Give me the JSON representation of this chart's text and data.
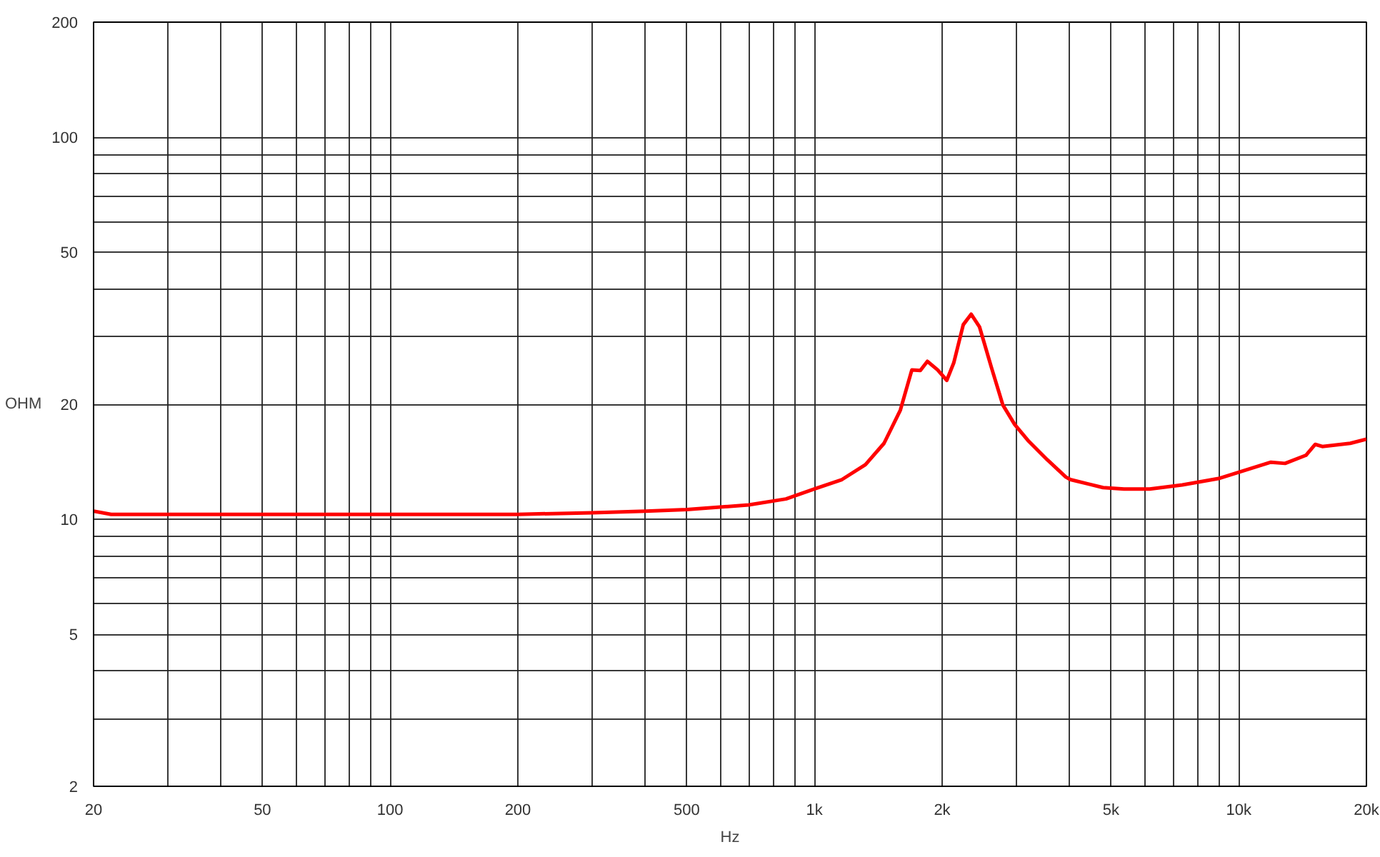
{
  "chart_data": {
    "type": "line",
    "xlabel": "Hz",
    "ylabel": "OHM",
    "log": "xy",
    "grid": true,
    "marker": "none",
    "line_style": "solid",
    "xlim": [
      20,
      20000
    ],
    "ylim": [
      2,
      200
    ],
    "xticks": [
      20,
      {
        "value": 30,
        "label": null
      },
      {
        "value": 40,
        "label": null
      },
      50,
      {
        "value": 60,
        "label": null
      },
      {
        "value": 70,
        "label": null
      },
      {
        "value": 80,
        "label": null
      },
      {
        "value": 90,
        "label": null
      },
      100,
      200,
      {
        "value": 300,
        "label": null
      },
      {
        "value": 400,
        "label": null
      },
      500,
      {
        "value": 600,
        "label": null
      },
      {
        "value": 700,
        "label": null
      },
      {
        "value": 800,
        "label": null
      },
      {
        "value": 900,
        "label": null
      },
      {
        "value": 1000,
        "label": "1k"
      },
      {
        "value": 2000,
        "label": "2k"
      },
      {
        "value": 3000,
        "label": null
      },
      {
        "value": 4000,
        "label": null
      },
      {
        "value": 5000,
        "label": "5k"
      },
      {
        "value": 6000,
        "label": null
      },
      {
        "value": 7000,
        "label": null
      },
      {
        "value": 8000,
        "label": null
      },
      {
        "value": 9000,
        "label": null
      },
      {
        "value": 10000,
        "label": "10k"
      },
      {
        "value": 20000,
        "label": "20k"
      }
    ],
    "yticks": [
      2,
      {
        "value": 3,
        "label": null
      },
      {
        "value": 4,
        "label": null
      },
      5,
      {
        "value": 6,
        "label": null
      },
      {
        "value": 7,
        "label": null
      },
      {
        "value": 8,
        "label": null
      },
      {
        "value": 9,
        "label": null
      },
      10,
      20,
      {
        "value": 30,
        "label": null
      },
      {
        "value": 40,
        "label": null
      },
      50,
      {
        "value": 60,
        "label": null
      },
      {
        "value": 70,
        "label": null
      },
      {
        "value": 80,
        "label": null
      },
      {
        "value": 90,
        "label": null
      },
      100,
      200
    ],
    "series": [
      {
        "color": "#ff0000",
        "x": [
          20,
          22,
          50,
          100,
          200,
          300,
          400,
          500,
          700,
          857,
          1000,
          1161,
          1319,
          1459,
          1594,
          1697,
          1777,
          1846,
          1951,
          2051,
          2131,
          2243,
          2341,
          2449,
          2612,
          2781,
          2965,
          3199,
          3541,
          3912,
          4010,
          4790,
          5365,
          6170,
          7364,
          9018,
          11910,
          12860,
          14400,
          15150,
          15740,
          18320,
          20000
        ],
        "values": [
          10.5,
          10.3,
          10.3,
          10.3,
          10.3,
          10.4,
          10.5,
          10.6,
          10.9,
          11.3,
          12.0,
          12.7,
          13.9,
          15.8,
          19.3,
          24.6,
          24.5,
          25.9,
          24.6,
          23.1,
          25.7,
          32.3,
          34.4,
          31.9,
          25.0,
          19.9,
          17.7,
          16.0,
          14.3,
          12.9,
          12.7,
          12.1,
          12.0,
          12.0,
          12.3,
          12.8,
          14.1,
          14.0,
          14.7,
          15.7,
          15.5,
          15.8,
          16.2
        ]
      }
    ]
  }
}
